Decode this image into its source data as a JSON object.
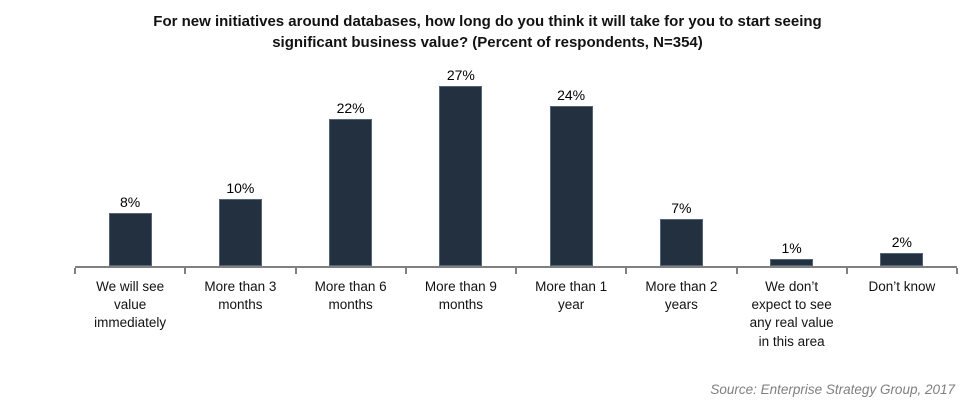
{
  "chart_data": {
    "type": "bar",
    "title": "For new initiatives around databases, how long do you think it will take for you to start seeing significant business value? (Percent of respondents, N=354)",
    "title_lines": [
      "For new initiatives around databases, how long do you think it will take for you to start seeing",
      "significant business value? (Percent of respondents, N=354)"
    ],
    "categories": [
      "We will see value immediately",
      "More than 3 months",
      "More than 6 months",
      "More than 9 months",
      "More than 1 year",
      "More than 2 years",
      "We don’t expect to see any real value in this area",
      "Don’t know"
    ],
    "values": [
      8,
      10,
      22,
      27,
      24,
      7,
      1,
      2
    ],
    "value_labels": [
      "8%",
      "10%",
      "22%",
      "27%",
      "24%",
      "7%",
      "1%",
      "2%"
    ],
    "xlabel": "",
    "ylabel": "",
    "ylim": [
      0,
      30
    ],
    "grid": false,
    "legend": false,
    "bar_color": "#22303F",
    "axis_color": "#808080",
    "source": "Source: Enterprise Strategy Group, 2017"
  }
}
